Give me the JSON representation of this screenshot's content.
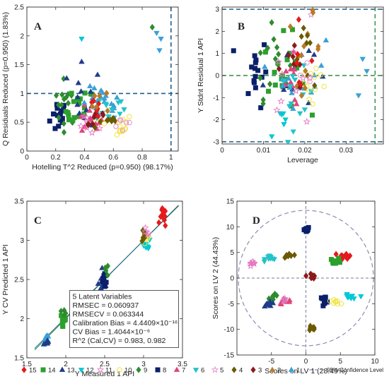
{
  "colors": {
    "15": "#e41a1c",
    "14": "#2ca02c",
    "13": "#1f3c88",
    "12": "#00c8d6",
    "11": "#e377c2",
    "10": "#f0e442",
    "9": "#2e8b2e",
    "8": "#0b1f6b",
    "7": "#e0457b",
    "6": "#22c3c9",
    "5": "#e88fcf",
    "4": "#6a5a00",
    "3": "#8b1a1a",
    "2": "#b97a2a",
    "1": "#3aa0d8",
    "ci": "#8a8fb0",
    "ref": "#1f5f8b",
    "lev": "#2e8b3e"
  },
  "chart_data": [
    {
      "panel": "A",
      "type": "scatter",
      "xlabel": "Hotelling T^2 Reduced (p=0.950) (98.17%)",
      "ylabel": "Q Residuals Reduced (p=0.950) (1.83%)",
      "xlim": [
        0,
        1.05
      ],
      "ylim": [
        0,
        2.5
      ],
      "xticks": [
        "0",
        "0.2",
        "0.4",
        "0.6",
        "0.8",
        "1"
      ],
      "yticks": [
        "0",
        "0.5",
        "1",
        "1.5",
        "2",
        "2.5"
      ],
      "limits": {
        "x": 1.0,
        "y": 1.0
      },
      "groups": [
        {
          "class": "8",
          "marker": "square",
          "cx": 0.22,
          "cy": 0.6,
          "sx": 0.03,
          "sy": 0.15,
          "n": 16
        },
        {
          "class": "9",
          "marker": "diamond",
          "cx": 0.27,
          "cy": 0.85,
          "sx": 0.04,
          "sy": 0.2,
          "n": 14
        },
        {
          "class": "14",
          "marker": "square",
          "cx": 0.37,
          "cy": 0.7,
          "sx": 0.05,
          "sy": 0.2,
          "n": 18
        },
        {
          "class": "13",
          "marker": "triangle",
          "cx": 0.4,
          "cy": 0.95,
          "sx": 0.06,
          "sy": 0.25,
          "n": 12
        },
        {
          "class": "7",
          "marker": "triangle",
          "cx": 0.43,
          "cy": 0.5,
          "sx": 0.05,
          "sy": 0.12,
          "n": 14
        },
        {
          "class": "11",
          "marker": "star",
          "cx": 0.42,
          "cy": 0.45,
          "sx": 0.04,
          "sy": 0.1,
          "n": 8
        },
        {
          "class": "1",
          "marker": "triangle",
          "cx": 0.52,
          "cy": 0.8,
          "sx": 0.07,
          "sy": 0.15,
          "n": 20
        },
        {
          "class": "6",
          "marker": "invtriangle",
          "cx": 0.58,
          "cy": 0.75,
          "sx": 0.05,
          "sy": 0.12,
          "n": 12
        },
        {
          "class": "4",
          "marker": "diamond",
          "cx": 0.55,
          "cy": 0.55,
          "sx": 0.05,
          "sy": 0.1,
          "n": 8
        },
        {
          "class": "10",
          "marker": "circle",
          "cx": 0.62,
          "cy": 0.45,
          "sx": 0.06,
          "sy": 0.1,
          "n": 14
        },
        {
          "class": "5",
          "marker": "circle",
          "cx": 0.66,
          "cy": 0.45,
          "sx": 0.04,
          "sy": 0.08,
          "n": 6
        },
        {
          "class": "3",
          "marker": "diamond",
          "cx": 0.47,
          "cy": 0.6,
          "sx": 0.05,
          "sy": 0.12,
          "n": 8
        },
        {
          "class": "15",
          "marker": "diamond",
          "cx": 0.5,
          "cy": 0.75,
          "sx": 0.05,
          "sy": 0.12,
          "n": 6
        },
        {
          "class": "2",
          "marker": "diamond",
          "cx": 0.54,
          "cy": 0.9,
          "sx": 0.04,
          "sy": 0.15,
          "n": 6
        }
      ],
      "points": [
        {
          "class": "1",
          "marker": "invtriangle",
          "x": 0.9,
          "y": 2.05
        },
        {
          "class": "1",
          "marker": "invtriangle",
          "x": 0.93,
          "y": 1.95
        },
        {
          "class": "1",
          "marker": "invtriangle",
          "x": 0.92,
          "y": 1.75
        },
        {
          "class": "9",
          "marker": "diamond",
          "x": 0.87,
          "y": 2.15
        },
        {
          "class": "12",
          "marker": "invtriangle",
          "x": 0.38,
          "y": 1.95
        },
        {
          "class": "13",
          "marker": "triangle",
          "x": 0.38,
          "y": 1.55
        }
      ]
    },
    {
      "panel": "B",
      "type": "scatter",
      "xlabel": "Leverage",
      "ylabel": "Y Stdnt Residual 1 API",
      "xlim": [
        0,
        0.039
      ],
      "ylim": [
        -3.1,
        3.1
      ],
      "xticks": [
        "0",
        "0.01",
        "0.02",
        "0.03"
      ],
      "yticks": [
        "-3",
        "-2",
        "-1",
        "0",
        "1",
        "2",
        "3"
      ],
      "limits": {
        "x": 0.037,
        "y": [
          -3,
          3
        ]
      },
      "groups": [
        {
          "class": "8",
          "marker": "square",
          "cx": 0.008,
          "cy": 0.2,
          "sx": 0.0015,
          "sy": 0.8,
          "n": 16
        },
        {
          "class": "9",
          "marker": "diamond",
          "cx": 0.012,
          "cy": 0.8,
          "sx": 0.002,
          "sy": 0.9,
          "n": 14
        },
        {
          "class": "14",
          "marker": "square",
          "cx": 0.015,
          "cy": 0.0,
          "sx": 0.0025,
          "sy": 0.9,
          "n": 20
        },
        {
          "class": "13",
          "marker": "triangle",
          "cx": 0.016,
          "cy": 0.2,
          "sx": 0.003,
          "sy": 0.9,
          "n": 12
        },
        {
          "class": "7",
          "marker": "triangle",
          "cx": 0.017,
          "cy": -0.5,
          "sx": 0.002,
          "sy": 0.9,
          "n": 12
        },
        {
          "class": "1",
          "marker": "triangle",
          "cx": 0.019,
          "cy": 0.2,
          "sx": 0.003,
          "sy": 0.8,
          "n": 16
        },
        {
          "class": "6",
          "marker": "invtriangle",
          "cx": 0.018,
          "cy": -1.4,
          "sx": 0.002,
          "sy": 0.8,
          "n": 14
        },
        {
          "class": "10",
          "marker": "circle",
          "cx": 0.022,
          "cy": -0.3,
          "sx": 0.002,
          "sy": 0.8,
          "n": 12
        },
        {
          "class": "2",
          "marker": "diamond",
          "cx": 0.02,
          "cy": 1.2,
          "sx": 0.002,
          "sy": 0.8,
          "n": 12
        },
        {
          "class": "4",
          "marker": "diamond",
          "cx": 0.021,
          "cy": 0.8,
          "sx": 0.002,
          "sy": 0.7,
          "n": 8
        },
        {
          "class": "3",
          "marker": "diamond",
          "cx": 0.017,
          "cy": 0.5,
          "sx": 0.002,
          "sy": 0.7,
          "n": 8
        },
        {
          "class": "15",
          "marker": "diamond",
          "cx": 0.018,
          "cy": 0.9,
          "sx": 0.002,
          "sy": 0.7,
          "n": 6
        },
        {
          "class": "11",
          "marker": "star",
          "cx": 0.016,
          "cy": -0.3,
          "sx": 0.002,
          "sy": 0.7,
          "n": 8
        },
        {
          "class": "5",
          "marker": "circle",
          "cx": 0.02,
          "cy": -0.6,
          "sx": 0.002,
          "sy": 0.6,
          "n": 5
        },
        {
          "class": "12",
          "marker": "invtriangle",
          "cx": 0.015,
          "cy": -2.2,
          "sx": 0.0015,
          "sy": 0.3,
          "n": 5
        }
      ],
      "points": [
        {
          "class": "1",
          "marker": "invtriangle",
          "x": 0.034,
          "y": 0.75
        },
        {
          "class": "1",
          "marker": "invtriangle",
          "x": 0.035,
          "y": 0.2
        },
        {
          "class": "1",
          "marker": "invtriangle",
          "x": 0.033,
          "y": -0.9
        },
        {
          "class": "5",
          "marker": "star",
          "x": 0.0215,
          "y": 2.75
        },
        {
          "class": "9",
          "marker": "diamond",
          "x": 0.012,
          "y": 2.4
        },
        {
          "class": "2",
          "marker": "diamond",
          "x": 0.022,
          "y": 2.85
        }
      ]
    },
    {
      "panel": "C",
      "type": "scatter",
      "xlabel": "Y Measured 1 API",
      "ylabel": "Y CV Predicted 1 API",
      "xlim": [
        1.5,
        3.5
      ],
      "ylim": [
        1.5,
        3.5
      ],
      "xticks": [
        "1.5",
        "2",
        "2.5",
        "3",
        "3.5"
      ],
      "yticks": [
        "1.5",
        "2",
        "2.5",
        "3",
        "3.5"
      ],
      "fit_lines": [
        {
          "x": [
            1.6,
            3.45
          ],
          "y": [
            1.6,
            3.45
          ],
          "color": "#2e8b3e"
        },
        {
          "x": [
            1.6,
            3.45
          ],
          "y": [
            1.62,
            3.44
          ],
          "color": "#1f5f8b"
        }
      ],
      "groups": [
        {
          "class": "1",
          "marker": "triangle",
          "cx": 1.75,
          "cy": 1.73,
          "sx": 0.02,
          "sy": 0.05,
          "n": 8
        },
        {
          "class": "13",
          "marker": "triangle",
          "cx": 1.75,
          "cy": 1.7,
          "sx": 0.02,
          "sy": 0.04,
          "n": 6
        },
        {
          "class": "14",
          "marker": "square",
          "cx": 1.97,
          "cy": 1.98,
          "sx": 0.02,
          "sy": 0.07,
          "n": 10
        },
        {
          "class": "9",
          "marker": "diamond",
          "cx": 1.98,
          "cy": 2.1,
          "sx": 0.02,
          "sy": 0.05,
          "n": 4
        },
        {
          "class": "13",
          "marker": "triangle",
          "cx": 2.48,
          "cy": 2.45,
          "sx": 0.03,
          "sy": 0.06,
          "n": 10
        },
        {
          "class": "8",
          "marker": "square",
          "cx": 2.5,
          "cy": 2.5,
          "sx": 0.02,
          "sy": 0.06,
          "n": 8
        },
        {
          "class": "9",
          "marker": "diamond",
          "cx": 2.52,
          "cy": 2.62,
          "sx": 0.02,
          "sy": 0.04,
          "n": 4
        },
        {
          "class": "12",
          "marker": "invtriangle",
          "cx": 3.03,
          "cy": 2.93,
          "sx": 0.03,
          "sy": 0.05,
          "n": 10
        },
        {
          "class": "10",
          "marker": "circle",
          "cx": 3.02,
          "cy": 3.0,
          "sx": 0.03,
          "sy": 0.05,
          "n": 8
        },
        {
          "class": "4",
          "marker": "diamond",
          "cx": 3.0,
          "cy": 3.05,
          "sx": 0.02,
          "sy": 0.04,
          "n": 6
        },
        {
          "class": "11",
          "marker": "star",
          "cx": 3.05,
          "cy": 3.1,
          "sx": 0.02,
          "sy": 0.04,
          "n": 4
        },
        {
          "class": "15",
          "marker": "diamond",
          "cx": 3.25,
          "cy": 3.28,
          "sx": 0.02,
          "sy": 0.06,
          "n": 12
        }
      ],
      "annotation": [
        "5 Latent Variables",
        "RMSEC = 0.060937",
        "RMSECV = 0.063344",
        "Calibration Bias = 4.4409×10⁻¹⁶",
        "CV Bias = 1.4044×10⁻⁶",
        "R^2 (Cal,CV) = 0.983, 0.982"
      ]
    },
    {
      "panel": "D",
      "type": "scatter",
      "xlabel": "Scores on LV 1 (28.49%)",
      "ylabel": "Scores on LV 2 (44.43%)",
      "xlim": [
        -10,
        10
      ],
      "ylim": [
        -15,
        15
      ],
      "xticks": [
        "-5",
        "0",
        "5",
        "10"
      ],
      "yticks": [
        "-15",
        "-10",
        "-5",
        "0",
        "5",
        "10",
        "15"
      ],
      "ellipse": {
        "rx": 9.8,
        "ry": 13.2
      },
      "groups": [
        {
          "class": "8",
          "marker": "square",
          "cx": 0.0,
          "cy": 9.5,
          "sx": 0.25,
          "sy": 0.25,
          "n": 10
        },
        {
          "class": "11",
          "marker": "star",
          "cx": -7.8,
          "cy": 2.6,
          "sx": 0.3,
          "sy": 0.25,
          "n": 8
        },
        {
          "class": "6",
          "marker": "invtriangle",
          "cx": -5.0,
          "cy": 4.0,
          "sx": 0.45,
          "sy": 0.3,
          "n": 10
        },
        {
          "class": "4",
          "marker": "diamond",
          "cx": -2.5,
          "cy": 4.3,
          "sx": 0.35,
          "sy": 0.3,
          "n": 8
        },
        {
          "class": "15",
          "marker": "diamond",
          "cx": 5.8,
          "cy": 4.3,
          "sx": 0.5,
          "sy": 0.35,
          "n": 12
        },
        {
          "class": "14",
          "marker": "square",
          "cx": 4.3,
          "cy": 3.3,
          "sx": 0.4,
          "sy": 0.3,
          "n": 8
        },
        {
          "class": "3",
          "marker": "diamond",
          "cx": 0.8,
          "cy": 0.5,
          "sx": 0.35,
          "sy": 0.3,
          "n": 8
        },
        {
          "class": "9",
          "marker": "diamond",
          "cx": -4.7,
          "cy": -3.8,
          "sx": 0.35,
          "sy": 0.3,
          "n": 8
        },
        {
          "class": "13",
          "marker": "triangle",
          "cx": -5.3,
          "cy": -5.0,
          "sx": 0.4,
          "sy": 0.25,
          "n": 10
        },
        {
          "class": "7",
          "marker": "triangle",
          "cx": -3.0,
          "cy": -4.5,
          "sx": 0.45,
          "sy": 0.3,
          "n": 10
        },
        {
          "class": "11",
          "marker": "star",
          "cx": -3.2,
          "cy": -4.2,
          "sx": 0.3,
          "sy": 0.2,
          "n": 4
        },
        {
          "class": "8",
          "marker": "square",
          "cx": 2.7,
          "cy": -4.2,
          "sx": 0.35,
          "sy": 0.3,
          "n": 8
        },
        {
          "class": "10",
          "marker": "circle",
          "cx": 4.3,
          "cy": -4.5,
          "sx": 0.35,
          "sy": 0.3,
          "n": 8
        },
        {
          "class": "12",
          "marker": "invtriangle",
          "cx": 6.4,
          "cy": -3.8,
          "sx": 0.5,
          "sy": 0.3,
          "n": 10
        },
        {
          "class": "4",
          "marker": "diamond",
          "cx": 0.8,
          "cy": -9.8,
          "sx": 0.3,
          "sy": 0.3,
          "n": 8
        }
      ]
    }
  ],
  "legend": {
    "items": [
      {
        "class": "15",
        "marker": "diamond",
        "label": "15"
      },
      {
        "class": "14",
        "marker": "square",
        "label": "14"
      },
      {
        "class": "13",
        "marker": "triangle",
        "label": "13"
      },
      {
        "class": "12",
        "marker": "invtriangle",
        "label": "12"
      },
      {
        "class": "11",
        "marker": "star",
        "label": "11"
      },
      {
        "class": "10",
        "marker": "circle",
        "label": "10"
      },
      {
        "class": "9",
        "marker": "diamond",
        "label": "9"
      },
      {
        "class": "8",
        "marker": "square",
        "label": "8"
      },
      {
        "class": "7",
        "marker": "triangle",
        "label": "7"
      },
      {
        "class": "6",
        "marker": "invtriangle",
        "label": "6"
      },
      {
        "class": "5",
        "marker": "star",
        "label": "5"
      },
      {
        "class": "4",
        "marker": "diamond",
        "label": "4"
      },
      {
        "class": "3",
        "marker": "diamond",
        "label": "3"
      },
      {
        "class": "2",
        "marker": "triangle",
        "label": "2"
      },
      {
        "class": "1",
        "marker": "triangle",
        "label": "1"
      }
    ],
    "ci_label": "95% Confidence Level"
  }
}
